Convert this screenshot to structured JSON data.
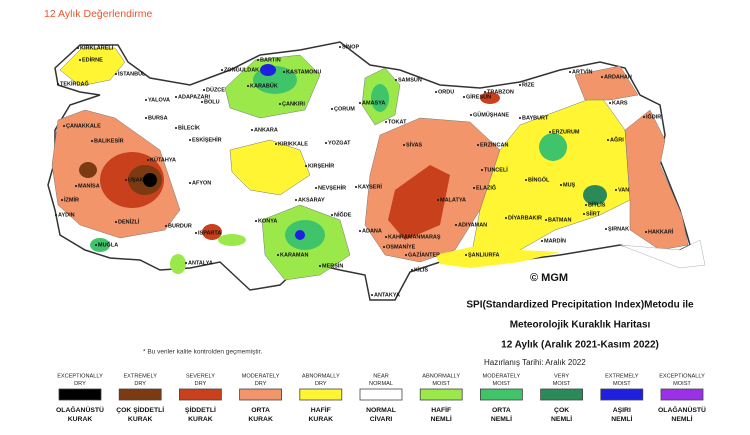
{
  "header": {
    "title": "12 Aylık Değerlendirme"
  },
  "map": {
    "copyright": "© MGM",
    "note": "* Bu veriler kalite kontrolden geçmemiştir.",
    "cities": [
      "KIRKLARELİ",
      "EDİRNE",
      "TEKİRDAĞ",
      "İSTANBUL",
      "ÇANAKKALE",
      "YALOVA",
      "ADAPAZARI",
      "DÜZCE",
      "BOLU",
      "ZONGULDAK",
      "BARTIN",
      "KARABÜK",
      "KASTAMONU",
      "SİNOP",
      "BURSA",
      "BİLECİK",
      "BALIKESİR",
      "ESKİŞEHİR",
      "ANKARA",
      "ÇANKIRI",
      "ÇORUM",
      "AMASYA",
      "SAMSUN",
      "ORDU",
      "GİRESUN",
      "TRABZON",
      "RİZE",
      "ARTVİN",
      "ARDAHAN",
      "KARS",
      "IĞDIR",
      "GÜMÜŞHANE",
      "BAYBURT",
      "ERZURUM",
      "AĞRI",
      "TOKAT",
      "SİVAS",
      "YOZGAT",
      "KIRIKKALE",
      "KÜTAHYA",
      "MANİSA",
      "İZMİR",
      "UŞAK",
      "AFYON",
      "KIRŞEHİR",
      "NEVŞEHİR",
      "KAYSERİ",
      "AKSARAY",
      "ERZİNCAN",
      "TUNCELİ",
      "BİNGÖL",
      "MUŞ",
      "VAN",
      "ELAZIĞ",
      "MALATYA",
      "BİTLİS",
      "SİİRT",
      "BATMAN",
      "DİYARBAKIR",
      "ŞIRNAK",
      "HAKKARİ",
      "MARDİN",
      "AYDIN",
      "DENİZLİ",
      "MUĞLA",
      "BURDUR",
      "ISPARTA",
      "KONYA",
      "KARAMAN",
      "NİĞDE",
      "ADANA",
      "OSMANİYE",
      "KAHRAMANMARAŞ",
      "ADIYAMAN",
      "GAZİANTEP",
      "ŞANLIURFA",
      "KİLİS",
      "ANTAKYA",
      "ANTALYA",
      "MERSİN"
    ]
  },
  "info": {
    "lines": [
      "SPI(Standardized Precipitation Index)Metodu ile",
      "Meteorolojik Kuraklık Haritası",
      "12 Aylık (Aralık 2021-Kasım 2022)"
    ],
    "date": "Hazırlanış Tarihi: Aralık 2022"
  },
  "legend": [
    {
      "en": [
        "EXCEPTIONALLY",
        "DRY"
      ],
      "tr": [
        "OLAĞANÜSTÜ",
        "KURAK"
      ],
      "color": "#000000"
    },
    {
      "en": [
        "EXTREMELY",
        "DRY"
      ],
      "tr": [
        "ÇOK ŞİDDETLİ",
        "KURAK"
      ],
      "color": "#7b3a12"
    },
    {
      "en": [
        "SEVERELY",
        "DRY"
      ],
      "tr": [
        "ŞİDDETLİ",
        "KURAK"
      ],
      "color": "#c8401c"
    },
    {
      "en": [
        "MODERATELY",
        "DRY"
      ],
      "tr": [
        "ORTA",
        "KURAK"
      ],
      "color": "#f3956a"
    },
    {
      "en": [
        "ABNORMALLY",
        "DRY"
      ],
      "tr": [
        "HAFİF",
        "KURAK"
      ],
      "color": "#fff533"
    },
    {
      "en": [
        "NEAR",
        "NORMAL"
      ],
      "tr": [
        "NORMAL",
        "CİVARI"
      ],
      "color": "#ffffff"
    },
    {
      "en": [
        "ABNORMALLY",
        "MOIST"
      ],
      "tr": [
        "HAFİF",
        "NEMLİ"
      ],
      "color": "#9be84a"
    },
    {
      "en": [
        "MODERATELY",
        "MOIST"
      ],
      "tr": [
        "ORTA",
        "NEMLİ"
      ],
      "color": "#3fc46a"
    },
    {
      "en": [
        "VERY",
        "MOIST"
      ],
      "tr": [
        "ÇOK",
        "NEMLİ"
      ],
      "color": "#2a8a58"
    },
    {
      "en": [
        "EXTREMELY",
        "MOIST"
      ],
      "tr": [
        "AŞIRI",
        "NEMLİ"
      ],
      "color": "#1f1fe0"
    },
    {
      "en": [
        "EXCEPTIONALLY",
        "MOIST"
      ],
      "tr": [
        "OLAĞANÜSTÜ",
        "NEMLİ"
      ],
      "color": "#9b30e8"
    }
  ]
}
